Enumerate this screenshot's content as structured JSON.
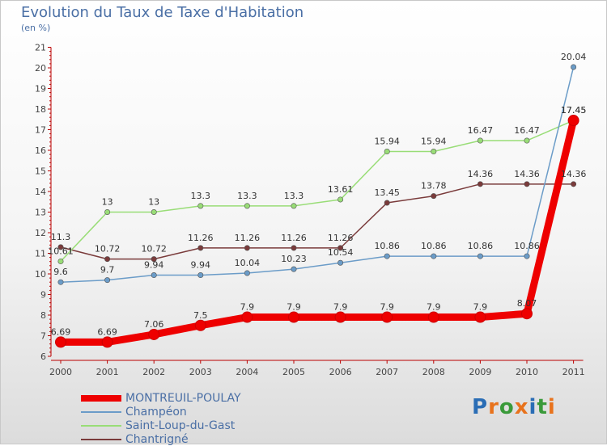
{
  "chart_data": {
    "type": "line",
    "title": "Evolution du Taux de Taxe d'Habitation",
    "subtitle": "(en %)",
    "x": [
      "2000",
      "2001",
      "2002",
      "2003",
      "2004",
      "2005",
      "2006",
      "2007",
      "2008",
      "2009",
      "2010",
      "2011"
    ],
    "ylim": [
      6,
      21
    ],
    "yticks": [
      6,
      7,
      8,
      9,
      10,
      11,
      12,
      13,
      14,
      15,
      16,
      17,
      18,
      19,
      20,
      21
    ],
    "grid": false,
    "legend_position": "bottom-left",
    "series": [
      {
        "name": "MONTREUIL-POULAY",
        "color": "#ee0000",
        "values": [
          6.69,
          6.69,
          7.06,
          7.5,
          7.9,
          7.9,
          7.9,
          7.9,
          7.9,
          7.9,
          8.07,
          17.45
        ],
        "labels": [
          "6.69",
          "6.69",
          "7.06",
          "7.5",
          "7.9",
          "7.9",
          "7.9",
          "7.9",
          "7.9",
          "7.9",
          "8.07",
          "17.45"
        ]
      },
      {
        "name": "Champéon",
        "color": "#6b9cc8",
        "values": [
          9.6,
          9.7,
          9.94,
          9.94,
          10.04,
          10.23,
          10.54,
          10.86,
          10.86,
          10.86,
          10.86,
          20.04
        ],
        "labels": [
          "9.6",
          "9.7",
          "9.94",
          "9.94",
          "10.04",
          "10.23",
          "10.54",
          "10.86",
          "10.86",
          "10.86",
          "10.86",
          "20.04"
        ]
      },
      {
        "name": "Saint-Loup-du-Gast",
        "color": "#99dd77",
        "values": [
          10.61,
          13,
          13,
          13.3,
          13.3,
          13.3,
          13.61,
          15.94,
          15.94,
          16.47,
          16.47,
          17.45
        ],
        "labels": [
          "10.61",
          "13",
          "13",
          "13.3",
          "13.3",
          "13.3",
          "13.61",
          "15.94",
          "15.94",
          "16.47",
          "16.47",
          "17.45"
        ]
      },
      {
        "name": "Chantrigné",
        "color": "#7a3b3b",
        "values": [
          11.3,
          10.72,
          10.72,
          11.26,
          11.26,
          11.26,
          11.26,
          13.45,
          13.78,
          14.36,
          14.36,
          14.36
        ],
        "labels": [
          "11.3",
          "10.72",
          "10.72",
          "11.26",
          "11.26",
          "11.26",
          "11.26",
          "13.45",
          "13.78",
          "14.36",
          "14.36",
          "14.36"
        ]
      }
    ]
  },
  "logo": {
    "letters": [
      "P",
      "r",
      "o",
      "x",
      "i",
      "t",
      "i"
    ],
    "colors": [
      "#2a6db5",
      "#e8731d",
      "#3a9a3a",
      "#e8731d",
      "#2a6db5",
      "#3a9a3a",
      "#e8731d"
    ]
  }
}
